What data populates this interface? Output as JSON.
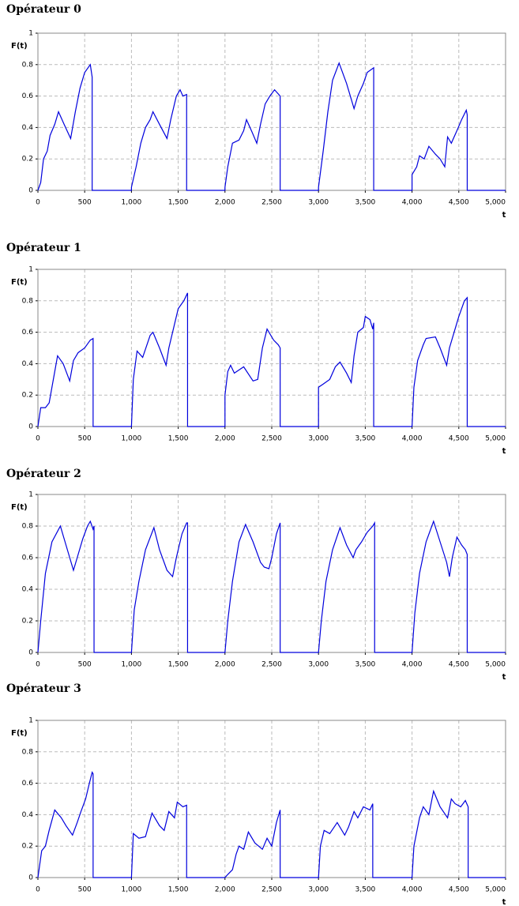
{
  "chart_data": [
    {
      "type": "line",
      "title": "Opérateur 0",
      "ylabel": "F(t)",
      "xlabel": "t",
      "color": "#0000dd",
      "grid": true,
      "xlim": [
        0,
        5000
      ],
      "ylim": [
        0,
        1
      ],
      "xticks": [
        0,
        500,
        {
          "value": 1000,
          "label": "1,000"
        },
        {
          "value": 1500,
          "label": "1,500"
        },
        {
          "value": 2000,
          "label": "2,000"
        },
        {
          "value": 2500,
          "label": "2,500"
        },
        {
          "value": 3000,
          "label": "3,000"
        },
        {
          "value": 3500,
          "label": "3,500"
        },
        {
          "value": 4000,
          "label": "4,000"
        },
        {
          "value": 4500,
          "label": "4,500"
        },
        {
          "value": 5000,
          "label": "5,000"
        }
      ],
      "yticks": [
        0,
        0.2,
        0.4,
        0.6,
        0.8,
        1
      ],
      "x": [
        0,
        30,
        60,
        100,
        130,
        180,
        220,
        280,
        350,
        400,
        450,
        500,
        560,
        580,
        580,
        1000,
        1000,
        1050,
        1100,
        1150,
        1200,
        1230,
        1300,
        1380,
        1420,
        1480,
        1520,
        1550,
        1590,
        1590,
        2000,
        2000,
        2030,
        2080,
        2150,
        2200,
        2230,
        2290,
        2340,
        2380,
        2430,
        2480,
        2530,
        2590,
        2590,
        3000,
        3000,
        3050,
        3100,
        3150,
        3220,
        3300,
        3350,
        3380,
        3420,
        3480,
        3520,
        3590,
        3590,
        4000,
        4000,
        4050,
        4080,
        4130,
        4180,
        4250,
        4300,
        4350,
        4380,
        4420,
        4480,
        4530,
        4580,
        4590,
        4590,
        5000
      ],
      "values": [
        0,
        0.05,
        0.2,
        0.25,
        0.35,
        0.42,
        0.5,
        0.42,
        0.33,
        0.5,
        0.65,
        0.75,
        0.8,
        0.72,
        0,
        0,
        0.02,
        0.15,
        0.3,
        0.4,
        0.45,
        0.5,
        0.42,
        0.33,
        0.45,
        0.6,
        0.64,
        0.6,
        0.61,
        0,
        0,
        0.02,
        0.15,
        0.3,
        0.32,
        0.38,
        0.45,
        0.37,
        0.3,
        0.42,
        0.55,
        0.6,
        0.64,
        0.6,
        0,
        0,
        0.02,
        0.25,
        0.5,
        0.7,
        0.81,
        0.68,
        0.58,
        0.52,
        0.6,
        0.68,
        0.75,
        0.78,
        0,
        0,
        0.1,
        0.15,
        0.22,
        0.2,
        0.28,
        0.23,
        0.2,
        0.15,
        0.34,
        0.3,
        0.38,
        0.45,
        0.51,
        0.48,
        0,
        0
      ]
    },
    {
      "type": "line",
      "title": "Opérateur 1",
      "ylabel": "F(t)",
      "xlabel": "t",
      "color": "#0000dd",
      "grid": true,
      "xlim": [
        0,
        5000
      ],
      "ylim": [
        0,
        1
      ],
      "xticks": [
        0,
        500,
        {
          "value": 1000,
          "label": "1,000"
        },
        {
          "value": 1500,
          "label": "1,500"
        },
        {
          "value": 2000,
          "label": "2,000"
        },
        {
          "value": 2500,
          "label": "2,500"
        },
        {
          "value": 3000,
          "label": "3,000"
        },
        {
          "value": 3500,
          "label": "3,500"
        },
        {
          "value": 4000,
          "label": "4,000"
        },
        {
          "value": 4500,
          "label": "4,500"
        },
        {
          "value": 5000,
          "label": "5,000"
        }
      ],
      "yticks": [
        0,
        0.2,
        0.4,
        0.6,
        0.8,
        1
      ],
      "x": [
        0,
        30,
        80,
        120,
        150,
        180,
        210,
        270,
        340,
        380,
        430,
        500,
        560,
        590,
        590,
        1000,
        1020,
        1060,
        1120,
        1200,
        1230,
        1300,
        1370,
        1400,
        1460,
        1500,
        1560,
        1600,
        1600,
        2000,
        2000,
        2030,
        2060,
        2100,
        2150,
        2200,
        2300,
        2350,
        2400,
        2450,
        2520,
        2570,
        2590,
        2590,
        3000,
        3000,
        3050,
        3120,
        3180,
        3230,
        3300,
        3350,
        3380,
        3420,
        3480,
        3500,
        3550,
        3580,
        3590,
        3590,
        4000,
        4020,
        4060,
        4120,
        4150,
        4250,
        4300,
        4370,
        4400,
        4450,
        4500,
        4560,
        4590,
        4590,
        5000
      ],
      "values": [
        0,
        0.12,
        0.12,
        0.15,
        0.25,
        0.35,
        0.45,
        0.4,
        0.29,
        0.42,
        0.47,
        0.5,
        0.55,
        0.56,
        0,
        0,
        0.3,
        0.48,
        0.44,
        0.58,
        0.6,
        0.5,
        0.39,
        0.5,
        0.65,
        0.75,
        0.8,
        0.85,
        0,
        0,
        0.2,
        0.35,
        0.39,
        0.34,
        0.36,
        0.38,
        0.29,
        0.3,
        0.5,
        0.62,
        0.55,
        0.52,
        0.5,
        0,
        0,
        0.25,
        0.27,
        0.3,
        0.38,
        0.41,
        0.34,
        0.28,
        0.45,
        0.6,
        0.63,
        0.7,
        0.68,
        0.62,
        0.66,
        0,
        0,
        0.25,
        0.42,
        0.52,
        0.56,
        0.57,
        0.5,
        0.39,
        0.5,
        0.6,
        0.7,
        0.8,
        0.82,
        0,
        0
      ]
    },
    {
      "type": "line",
      "title": "Opérateur 2",
      "ylabel": "F(t)",
      "xlabel": "t",
      "color": "#0000dd",
      "grid": true,
      "xlim": [
        0,
        5000
      ],
      "ylim": [
        0,
        1
      ],
      "xticks": [
        0,
        500,
        {
          "value": 1000,
          "label": "1,000"
        },
        {
          "value": 1500,
          "label": "1,500"
        },
        {
          "value": 2000,
          "label": "2,000"
        },
        {
          "value": 2500,
          "label": "2,500"
        },
        {
          "value": 3000,
          "label": "3,000"
        },
        {
          "value": 3500,
          "label": "3,500"
        },
        {
          "value": 4000,
          "label": "4,000"
        },
        {
          "value": 4500,
          "label": "4,500"
        },
        {
          "value": 5000,
          "label": "5,000"
        }
      ],
      "yticks": [
        0,
        0.2,
        0.4,
        0.6,
        0.8,
        1
      ],
      "x": [
        0,
        30,
        80,
        150,
        240,
        300,
        380,
        420,
        480,
        530,
        560,
        590,
        600,
        600,
        1000,
        1030,
        1080,
        1150,
        1240,
        1300,
        1380,
        1440,
        1480,
        1540,
        1590,
        1600,
        1600,
        2000,
        2030,
        2080,
        2150,
        2220,
        2300,
        2380,
        2420,
        2470,
        2500,
        2550,
        2590,
        2590,
        3000,
        3030,
        3080,
        3150,
        3230,
        3300,
        3370,
        3400,
        3460,
        3520,
        3580,
        3600,
        3600,
        4000,
        4030,
        4080,
        4150,
        4230,
        4300,
        4370,
        4400,
        4430,
        4480,
        4530,
        4570,
        4590,
        4590,
        5000
      ],
      "values": [
        0,
        0.2,
        0.5,
        0.7,
        0.8,
        0.68,
        0.52,
        0.6,
        0.72,
        0.8,
        0.83,
        0.78,
        0.8,
        0,
        0,
        0.27,
        0.45,
        0.65,
        0.79,
        0.65,
        0.52,
        0.48,
        0.6,
        0.75,
        0.82,
        0.82,
        0,
        0,
        0.2,
        0.45,
        0.7,
        0.81,
        0.7,
        0.57,
        0.54,
        0.53,
        0.6,
        0.75,
        0.82,
        0,
        0,
        0.2,
        0.45,
        0.65,
        0.79,
        0.68,
        0.6,
        0.65,
        0.7,
        0.76,
        0.8,
        0.82,
        0,
        0,
        0.25,
        0.5,
        0.7,
        0.83,
        0.7,
        0.57,
        0.48,
        0.6,
        0.73,
        0.68,
        0.65,
        0.62,
        0,
        0
      ]
    },
    {
      "type": "line",
      "title": "Opérateur 3",
      "ylabel": "F(t)",
      "xlabel": "t",
      "color": "#0000dd",
      "grid": true,
      "xlim": [
        0,
        5000
      ],
      "ylim": [
        0,
        1
      ],
      "xticks": [
        0,
        500,
        {
          "value": 1000,
          "label": "1,000"
        },
        {
          "value": 1500,
          "label": "1,500"
        },
        {
          "value": 2000,
          "label": "2,000"
        },
        {
          "value": 2500,
          "label": "2,500"
        },
        {
          "value": 3000,
          "label": "3,000"
        },
        {
          "value": 3500,
          "label": "3,500"
        },
        {
          "value": 4000,
          "label": "4,000"
        },
        {
          "value": 4500,
          "label": "4,500"
        },
        {
          "value": 5000,
          "label": "5,000"
        }
      ],
      "yticks": [
        0,
        0.2,
        0.4,
        0.6,
        0.8,
        1
      ],
      "x": [
        0,
        40,
        80,
        120,
        180,
        250,
        300,
        370,
        420,
        460,
        510,
        550,
        580,
        590,
        590,
        1000,
        1020,
        1080,
        1150,
        1220,
        1300,
        1350,
        1400,
        1460,
        1490,
        1550,
        1590,
        1590,
        2000,
        2030,
        2080,
        2120,
        2150,
        2200,
        2250,
        2320,
        2400,
        2450,
        2500,
        2550,
        2590,
        2590,
        3000,
        3020,
        3060,
        3120,
        3200,
        3280,
        3320,
        3380,
        3420,
        3480,
        3550,
        3580,
        3580,
        4000,
        4020,
        4080,
        4120,
        4180,
        4230,
        4300,
        4380,
        4420,
        4460,
        4520,
        4570,
        4600,
        4600,
        5000
      ],
      "values": [
        0,
        0.17,
        0.2,
        0.3,
        0.43,
        0.38,
        0.33,
        0.27,
        0.35,
        0.42,
        0.5,
        0.6,
        0.67,
        0.66,
        0,
        0,
        0.28,
        0.25,
        0.26,
        0.41,
        0.33,
        0.3,
        0.42,
        0.38,
        0.48,
        0.45,
        0.46,
        0,
        0,
        0.02,
        0.05,
        0.15,
        0.2,
        0.18,
        0.29,
        0.22,
        0.18,
        0.25,
        0.2,
        0.35,
        0.43,
        0,
        0,
        0.2,
        0.3,
        0.28,
        0.35,
        0.27,
        0.32,
        0.42,
        0.38,
        0.45,
        0.43,
        0.47,
        0,
        0,
        0.2,
        0.38,
        0.45,
        0.4,
        0.55,
        0.45,
        0.38,
        0.5,
        0.47,
        0.45,
        0.49,
        0.45,
        0,
        0
      ]
    }
  ]
}
